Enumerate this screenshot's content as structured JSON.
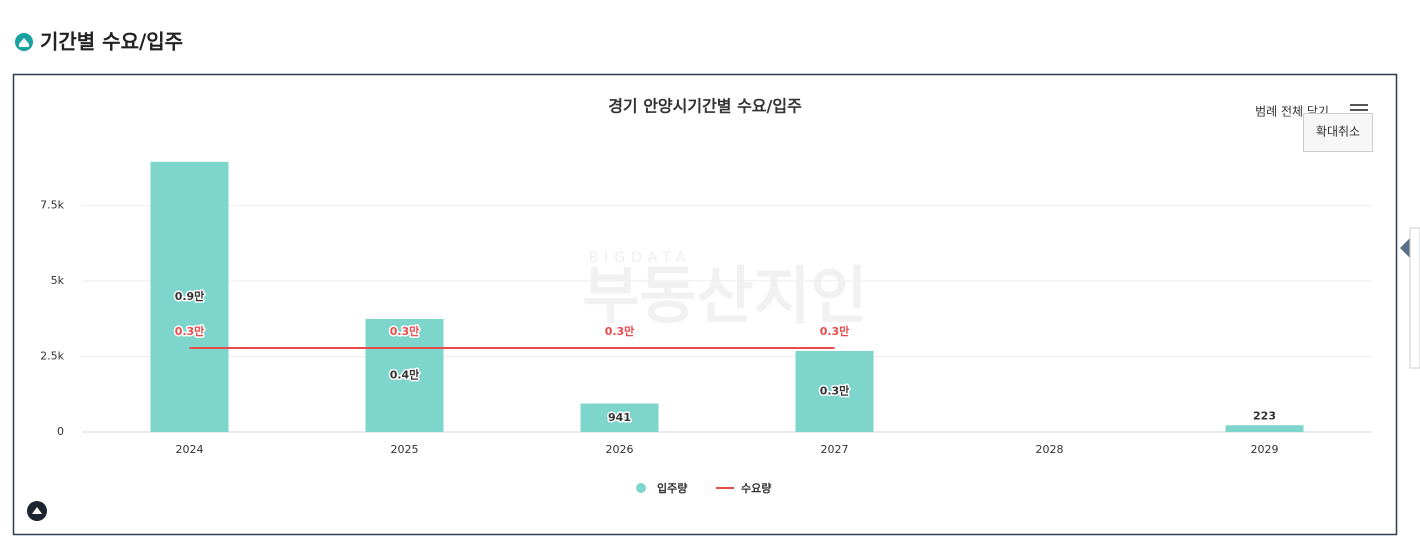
{
  "header": {
    "title": "기간별 수요/입주"
  },
  "watermark": {
    "top": "BIGDATA",
    "main": "부동산지인"
  },
  "controls": {
    "legend_toggle": "범례 전체 닫기",
    "reset_zoom": "확대취소"
  },
  "chart_data": {
    "type": "bar",
    "title": "경기 안양시기간별 수요/입주",
    "categories": [
      "2024",
      "2025",
      "2026",
      "2027",
      "2028",
      "2029"
    ],
    "series": [
      {
        "name": "입주량",
        "type": "bar",
        "color": "#7dd5cc",
        "values": [
          8940,
          3740,
          941,
          2680,
          null,
          223
        ],
        "value_labels": [
          "0.9만",
          "0.4만",
          "941",
          "0.3만",
          null,
          "223"
        ]
      },
      {
        "name": "수요량",
        "type": "line",
        "color": "#e84b4b",
        "values": [
          2780,
          2780,
          2780,
          2780,
          null,
          null
        ],
        "value_labels": [
          "0.3만",
          "0.3만",
          "0.3만",
          "0.3만",
          null,
          null
        ]
      }
    ],
    "ylim": [
      0,
      9000
    ],
    "yticks": [
      0,
      {
        "value": 2500,
        "label": "2.5k"
      },
      {
        "value": 5000,
        "label": "5k"
      },
      {
        "value": 7500,
        "label": "7.5k"
      }
    ],
    "grid": true,
    "legend": "bottom"
  }
}
